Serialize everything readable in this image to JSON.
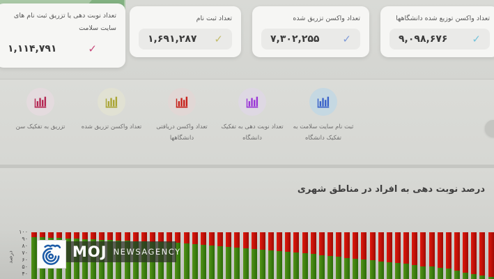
{
  "icons": {
    "check": "✓"
  },
  "stats_cards": [
    {
      "id": "site-registrations",
      "title": "تعداد نوبت دهی یا تزریق ثبت نام های سایت سلامت",
      "value": "۱,۱۱۴,۷۹۱",
      "check_color": "#c8487a"
    },
    {
      "id": "registrations",
      "title": "تعداد ثبت نام",
      "value": "۱,۶۹۱,۲۸۷",
      "check_color": "#c4bd6b"
    },
    {
      "id": "vaccines-injected",
      "title": "تعداد واکسن تزریق شده",
      "value": "۷,۳۰۲,۲۵۵",
      "check_color": "#7e9ad8"
    },
    {
      "id": "vaccines-distributed-universities",
      "title": "تعداد واکسن توزیع شده دانشگاهها",
      "value": "۹,۰۹۸,۶۷۶",
      "check_color": "#74c3da"
    }
  ],
  "nav": {
    "items": [
      {
        "label": "تزریق به تفکیک سن",
        "icon": "bar-chart-icon",
        "icon_color": "#b42552",
        "circle_bg": "#e4dbde"
      },
      {
        "label": "تعداد واکسن تزریق شده",
        "icon": "bar-chart-icon",
        "icon_color": "#a9a433",
        "circle_bg": "#e1e1d3"
      },
      {
        "label": "تعداد واکسن دریافتی دانشگاهها",
        "icon": "bar-chart-icon",
        "icon_color": "#c62019",
        "circle_bg": "#e1d7d5"
      },
      {
        "label": "تعداد نوبت دهی به تفکیک دانشگاه",
        "icon": "bar-chart-icon",
        "icon_color": "#9a35d6",
        "circle_bg": "#ded8e3"
      },
      {
        "label": "ثبت نام سایت سلامت به تفکیک دانشگاه",
        "icon": "bar-chart-icon",
        "icon_color": "#3a62c9",
        "circle_bg": "#c5d8e2"
      }
    ]
  },
  "chart": {
    "title": "درصد نوبت دهی به افراد در مناطق شهری",
    "ylabel": "درصد",
    "yticks": [
      {
        "label": "۱۰۰",
        "value": 100
      },
      {
        "label": "۹۰",
        "value": 90
      },
      {
        "label": "۸۰",
        "value": 80
      },
      {
        "label": "۷۰",
        "value": 70
      },
      {
        "label": "۶۰",
        "value": 60
      },
      {
        "label": "۵۰",
        "value": 50
      },
      {
        "label": "۴۰",
        "value": 40
      }
    ]
  },
  "chart_data": {
    "type": "bar",
    "stacked": true,
    "stack_total": 100,
    "title": "درصد نوبت دهی به افراد در مناطق شهری",
    "ylabel": "درصد",
    "ylim_visible": [
      33,
      100
    ],
    "ytick_values": [
      100,
      90,
      80,
      70,
      60,
      50,
      40
    ],
    "x_tick_labels_visible": false,
    "series": [
      {
        "name": "green-percentage",
        "color": "#3a7d13",
        "values": [
          93,
          93,
          92,
          92,
          91,
          91,
          90,
          90,
          89,
          89,
          88,
          88,
          87,
          87,
          86,
          86,
          85,
          85,
          84,
          83,
          82,
          81,
          80,
          79,
          78,
          77,
          76,
          75,
          74,
          73,
          72,
          71,
          70,
          69,
          67,
          66,
          65,
          63,
          62,
          61,
          60,
          58,
          57,
          56,
          55,
          53,
          51,
          51,
          49,
          48,
          45,
          42,
          40,
          38,
          36
        ]
      },
      {
        "name": "red-remainder",
        "color": "#cc1410",
        "values": [
          7,
          7,
          8,
          8,
          9,
          9,
          10,
          10,
          11,
          11,
          12,
          12,
          13,
          13,
          14,
          14,
          15,
          15,
          16,
          17,
          18,
          19,
          20,
          21,
          22,
          23,
          24,
          25,
          26,
          27,
          28,
          29,
          30,
          31,
          33,
          34,
          35,
          37,
          38,
          39,
          40,
          42,
          43,
          44,
          45,
          47,
          49,
          49,
          51,
          52,
          55,
          58,
          60,
          62,
          64
        ]
      }
    ]
  },
  "watermark": {
    "brand": "MOJ",
    "agency": "NEWSAGENCY"
  }
}
